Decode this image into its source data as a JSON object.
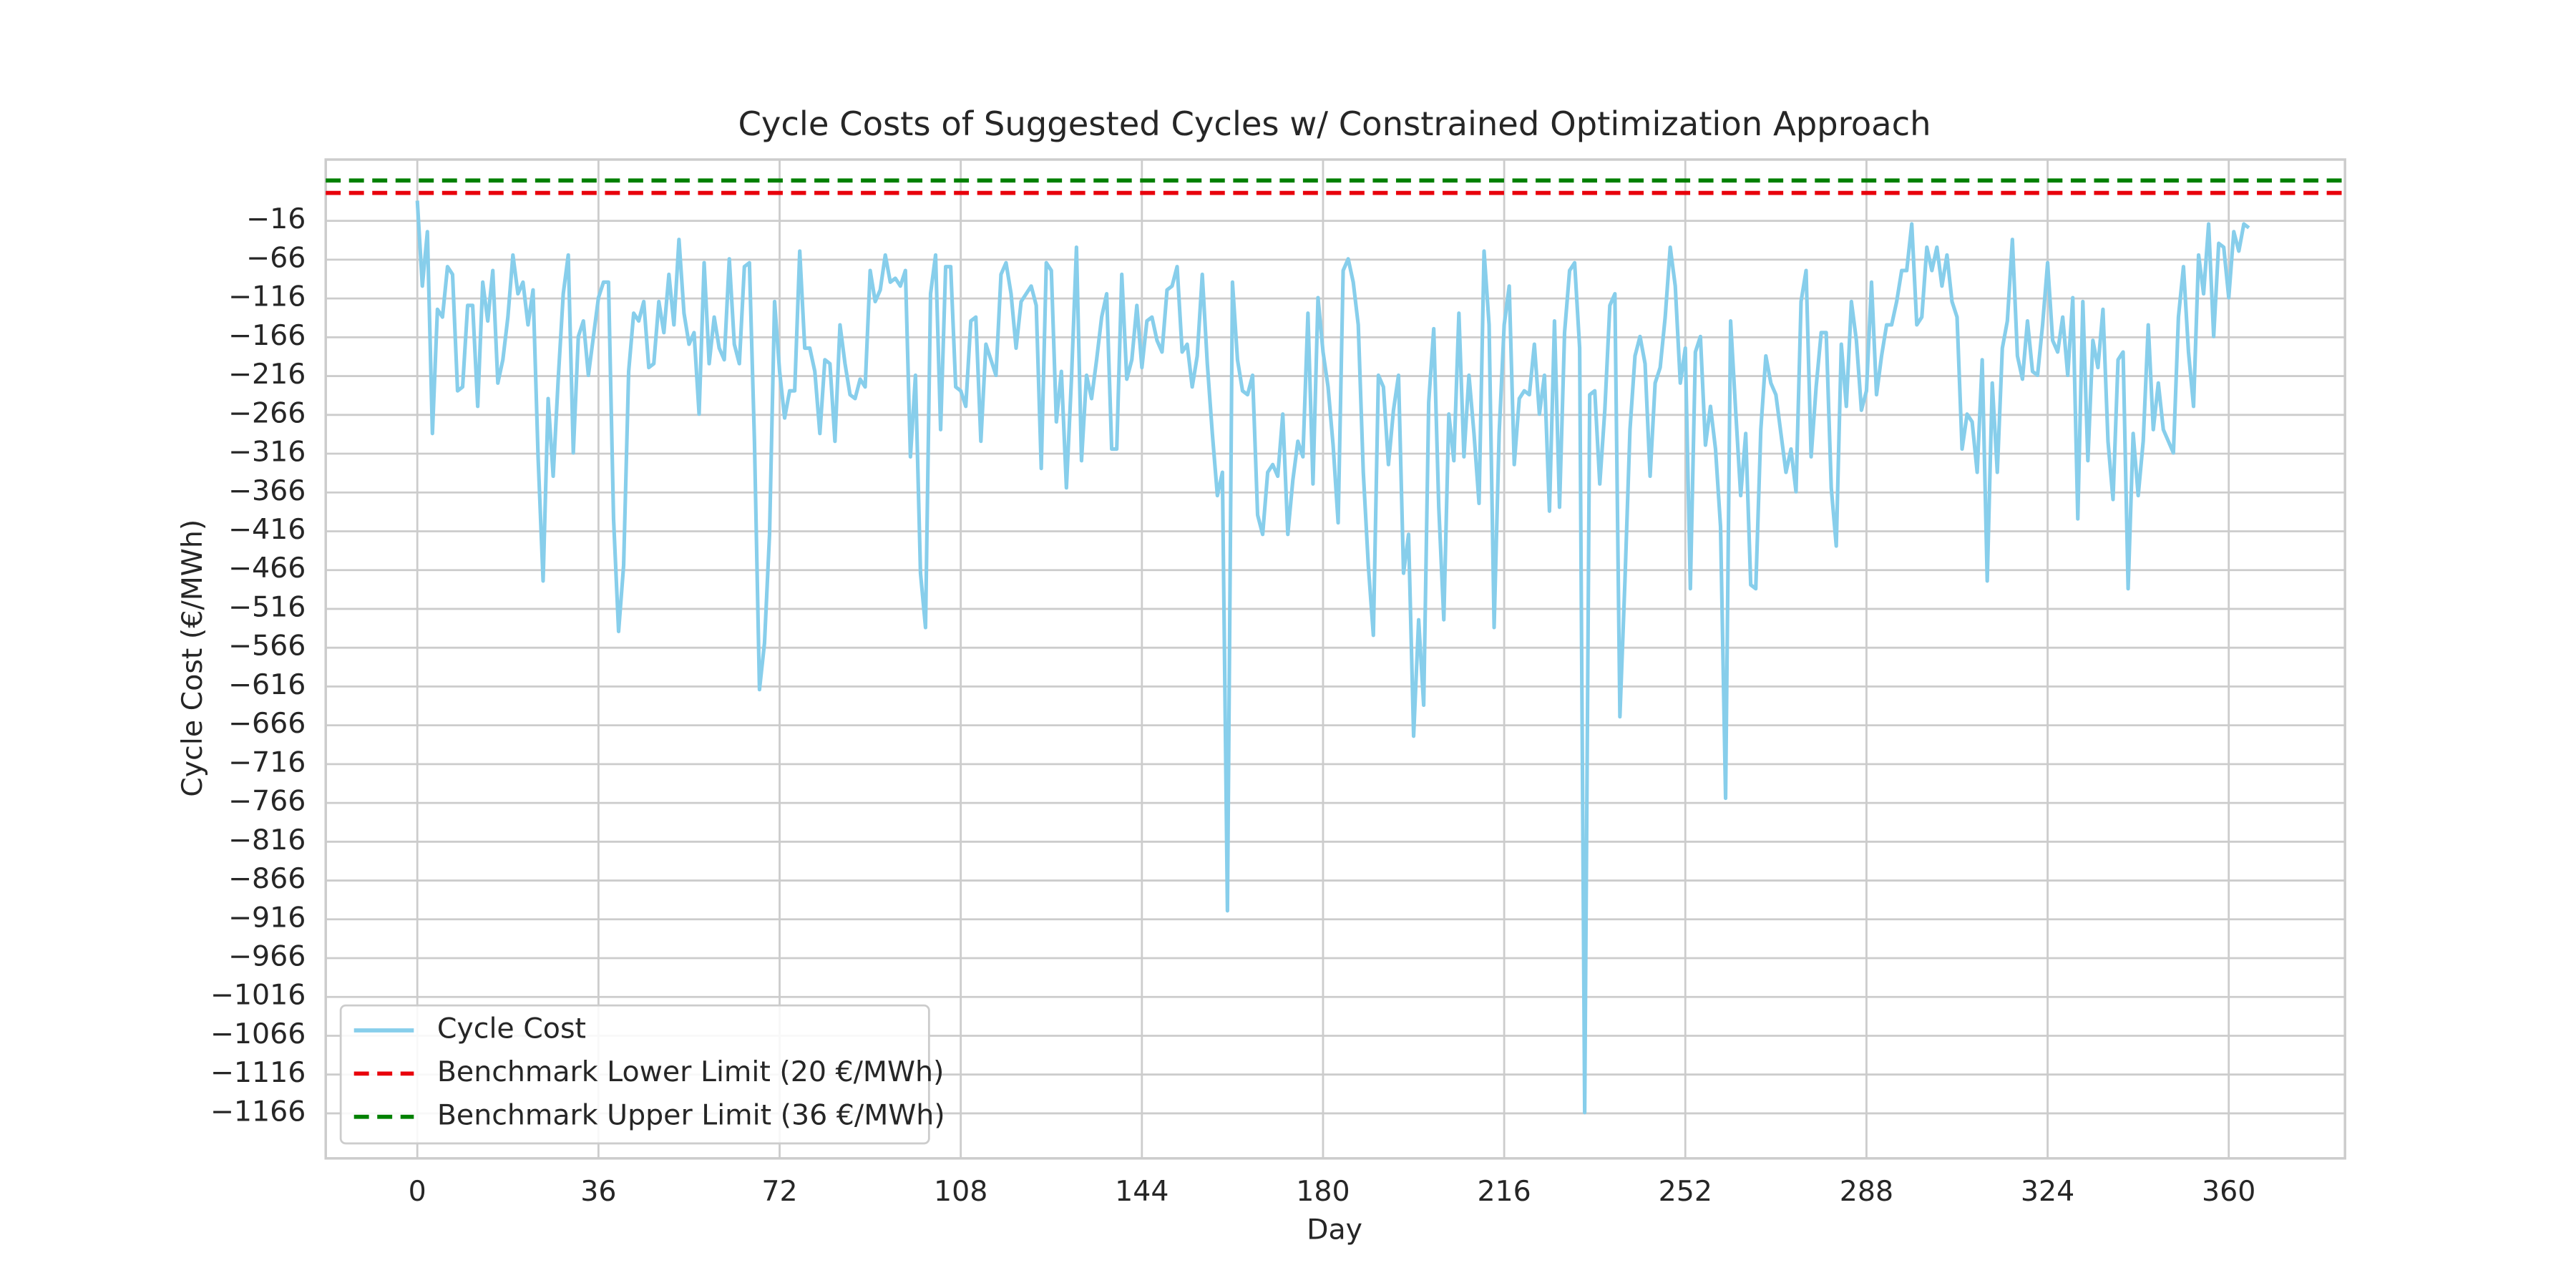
{
  "chart_data": {
    "type": "line",
    "title": "Cycle Costs of Suggested Cycles w/ Constrained Optimization Approach",
    "xlabel": "Day",
    "ylabel": "Cycle Cost (€/MWh)",
    "x": [
      0,
      1,
      2,
      3,
      4,
      5,
      6,
      7,
      8,
      9,
      10,
      11,
      12,
      13,
      14,
      15,
      16,
      17,
      18,
      19,
      20,
      21,
      22,
      23,
      24,
      25,
      26,
      27,
      28,
      29,
      30,
      31,
      32,
      33,
      34,
      35,
      36,
      37,
      38,
      39,
      40,
      41,
      42,
      43,
      44,
      45,
      46,
      47,
      48,
      49,
      50,
      51,
      52,
      53,
      54,
      55,
      56,
      57,
      58,
      59,
      60,
      61,
      62,
      63,
      64,
      65,
      66,
      67,
      68,
      69,
      70,
      71,
      72,
      73,
      74,
      75,
      76,
      77,
      78,
      79,
      80,
      81,
      82,
      83,
      84,
      85,
      86,
      87,
      88,
      89,
      90,
      91,
      92,
      93,
      94,
      95,
      96,
      97,
      98,
      99,
      100,
      101,
      102,
      103,
      104,
      105,
      106,
      107,
      108,
      109,
      110,
      111,
      112,
      113,
      114,
      115,
      116,
      117,
      118,
      119,
      120,
      121,
      122,
      123,
      124,
      125,
      126,
      127,
      128,
      129,
      130,
      131,
      132,
      133,
      134,
      135,
      136,
      137,
      138,
      139,
      140,
      141,
      142,
      143,
      144,
      145,
      146,
      147,
      148,
      149,
      150,
      151,
      152,
      153,
      154,
      155,
      156,
      157,
      158,
      159,
      160,
      161,
      162,
      163,
      164,
      165,
      166,
      167,
      168,
      169,
      170,
      171,
      172,
      173,
      174,
      175,
      176,
      177,
      178,
      179,
      180,
      181,
      182,
      183,
      184,
      185,
      186,
      187,
      188,
      189,
      190,
      191,
      192,
      193,
      194,
      195,
      196,
      197,
      198,
      199,
      200,
      201,
      202,
      203,
      204,
      205,
      206,
      207,
      208,
      209,
      210,
      211,
      212,
      213,
      214,
      215,
      216,
      217,
      218,
      219,
      220,
      221,
      222,
      223,
      224,
      225,
      226,
      227,
      228,
      229,
      230,
      231,
      232,
      233,
      234,
      235,
      236,
      237,
      238,
      239,
      240,
      241,
      242,
      243,
      244,
      245,
      246,
      247,
      248,
      249,
      250,
      251,
      252,
      253,
      254,
      255,
      256,
      257,
      258,
      259,
      260,
      261,
      262,
      263,
      264,
      265,
      266,
      267,
      268,
      269,
      270,
      271,
      272,
      273,
      274,
      275,
      276,
      277,
      278,
      279,
      280,
      281,
      282,
      283,
      284,
      285,
      286,
      287,
      288,
      289,
      290,
      291,
      292,
      293,
      294,
      295,
      296,
      297,
      298,
      299,
      300,
      301,
      302,
      303,
      304,
      305,
      306,
      307,
      308,
      309,
      310,
      311,
      312,
      313,
      314,
      315,
      316,
      317,
      318,
      319,
      320,
      321,
      322,
      323,
      324,
      325,
      326,
      327,
      328,
      329,
      330,
      331,
      332,
      333,
      334,
      335,
      336,
      337,
      338,
      339,
      340,
      341,
      342,
      343,
      344,
      345,
      346,
      347,
      348,
      349,
      350,
      351,
      352,
      353,
      354,
      355,
      356,
      357,
      358,
      359,
      360,
      361,
      362,
      363,
      364
    ],
    "series": [
      {
        "name": "Cycle Cost",
        "color": "#87ceeb",
        "values": [
          10,
          -100,
          -30,
          -290,
          -130,
          -140,
          -75,
          -85,
          -235,
          -230,
          -125,
          -125,
          -255,
          -95,
          -145,
          -80,
          -225,
          -195,
          -140,
          -60,
          -110,
          -95,
          -150,
          -105,
          -320,
          -480,
          -245,
          -345,
          -220,
          -110,
          -60,
          -315,
          -165,
          -145,
          -215,
          -165,
          -115,
          -95,
          -95,
          -400,
          -545,
          -460,
          -210,
          -135,
          -145,
          -120,
          -205,
          -200,
          -120,
          -160,
          -85,
          -150,
          -40,
          -135,
          -175,
          -160,
          -265,
          -70,
          -200,
          -140,
          -180,
          -195,
          -65,
          -175,
          -200,
          -75,
          -70,
          -300,
          -620,
          -560,
          -420,
          -120,
          -210,
          -270,
          -235,
          -235,
          -55,
          -180,
          -180,
          -210,
          -290,
          -195,
          -200,
          -300,
          -150,
          -200,
          -240,
          -245,
          -220,
          -230,
          -80,
          -120,
          -105,
          -60,
          -95,
          -90,
          -100,
          -80,
          -320,
          -215,
          -470,
          -540,
          -110,
          -60,
          -285,
          -75,
          -75,
          -230,
          -235,
          -255,
          -145,
          -140,
          -300,
          -175,
          -195,
          -215,
          -85,
          -70,
          -110,
          -180,
          -120,
          -110,
          -100,
          -125,
          -335,
          -70,
          -80,
          -275,
          -210,
          -360,
          -220,
          -50,
          -325,
          -215,
          -245,
          -195,
          -140,
          -110,
          -310,
          -310,
          -85,
          -220,
          -195,
          -125,
          -205,
          -145,
          -140,
          -170,
          -185,
          -105,
          -100,
          -75,
          -185,
          -175,
          -230,
          -190,
          -85,
          -200,
          -290,
          -370,
          -340,
          -905,
          -95,
          -195,
          -235,
          -240,
          -215,
          -395,
          -420,
          -340,
          -330,
          -345,
          -265,
          -420,
          -350,
          -300,
          -320,
          -135,
          -355,
          -115,
          -185,
          -230,
          -305,
          -405,
          -80,
          -65,
          -95,
          -150,
          -340,
          -460,
          -550,
          -215,
          -230,
          -330,
          -260,
          -215,
          -470,
          -420,
          -680,
          -530,
          -640,
          -250,
          -155,
          -385,
          -530,
          -265,
          -325,
          -135,
          -320,
          -215,
          -290,
          -380,
          -55,
          -150,
          -540,
          -290,
          -150,
          -100,
          -330,
          -245,
          -235,
          -240,
          -175,
          -265,
          -215,
          -390,
          -145,
          -385,
          -160,
          -80,
          -70,
          -180,
          -1165,
          -240,
          -235,
          -355,
          -260,
          -125,
          -110,
          -655,
          -480,
          -285,
          -190,
          -165,
          -200,
          -345,
          -225,
          -205,
          -140,
          -50,
          -100,
          -225,
          -180,
          -490,
          -185,
          -165,
          -305,
          -255,
          -310,
          -410,
          -760,
          -145,
          -260,
          -370,
          -290,
          -485,
          -490,
          -285,
          -190,
          -225,
          -240,
          -290,
          -340,
          -310,
          -365,
          -120,
          -80,
          -320,
          -230,
          -160,
          -160,
          -360,
          -435,
          -175,
          -255,
          -120,
          -170,
          -260,
          -235,
          -95,
          -240,
          -190,
          -150,
          -150,
          -120,
          -80,
          -80,
          -20,
          -150,
          -140,
          -50,
          -80,
          -50,
          -100,
          -60,
          -120,
          -140,
          -310,
          -265,
          -275,
          -340,
          -195,
          -480,
          -225,
          -340,
          -180,
          -145,
          -40,
          -190,
          -220,
          -145,
          -210,
          -215,
          -150,
          -70,
          -170,
          -185,
          -140,
          -215,
          -115,
          -400,
          -120,
          -325,
          -170,
          -205,
          -130,
          -300,
          -375,
          -195,
          -185,
          -490,
          -290,
          -370,
          -300,
          -150,
          -285,
          -225,
          -285,
          -300,
          -315,
          -140,
          -75,
          -185,
          -255,
          -60,
          -110,
          -20,
          -165,
          -45,
          -50,
          -115,
          -30,
          -55,
          -20,
          -25
        ]
      }
    ],
    "hlines": [
      {
        "name": "Benchmark Lower Limit (20 €/MWh)",
        "value": 20,
        "color": "#e8000b"
      },
      {
        "name": "Benchmark Upper Limit (36 €/MWh)",
        "value": 36,
        "color": "#008000"
      }
    ],
    "xlim": [
      -18.2,
      383.1
    ],
    "ylim": [
      -1224,
      63
    ],
    "xticks": [
      0,
      36,
      72,
      108,
      144,
      180,
      216,
      252,
      288,
      324,
      360
    ],
    "yticks": [
      {
        "value": -16,
        "label": "−16"
      },
      {
        "value": -66,
        "label": "−66"
      },
      {
        "value": -116,
        "label": "−116"
      },
      {
        "value": -166,
        "label": "−166"
      },
      {
        "value": -216,
        "label": "−216"
      },
      {
        "value": -266,
        "label": "−266"
      },
      {
        "value": -316,
        "label": "−316"
      },
      {
        "value": -366,
        "label": "−366"
      },
      {
        "value": -416,
        "label": "−416"
      },
      {
        "value": -466,
        "label": "−466"
      },
      {
        "value": -516,
        "label": "−516"
      },
      {
        "value": -566,
        "label": "−566"
      },
      {
        "value": -616,
        "label": "−616"
      },
      {
        "value": -666,
        "label": "−666"
      },
      {
        "value": -716,
        "label": "−716"
      },
      {
        "value": -766,
        "label": "−766"
      },
      {
        "value": -816,
        "label": "−816"
      },
      {
        "value": -866,
        "label": "−866"
      },
      {
        "value": -916,
        "label": "−916"
      },
      {
        "value": -966,
        "label": "−966"
      },
      {
        "value": -1016,
        "label": "−1016"
      },
      {
        "value": -1066,
        "label": "−1066"
      },
      {
        "value": -1116,
        "label": "−1116"
      },
      {
        "value": -1166,
        "label": "−1166"
      }
    ],
    "grid": true,
    "legend": "lower left"
  }
}
